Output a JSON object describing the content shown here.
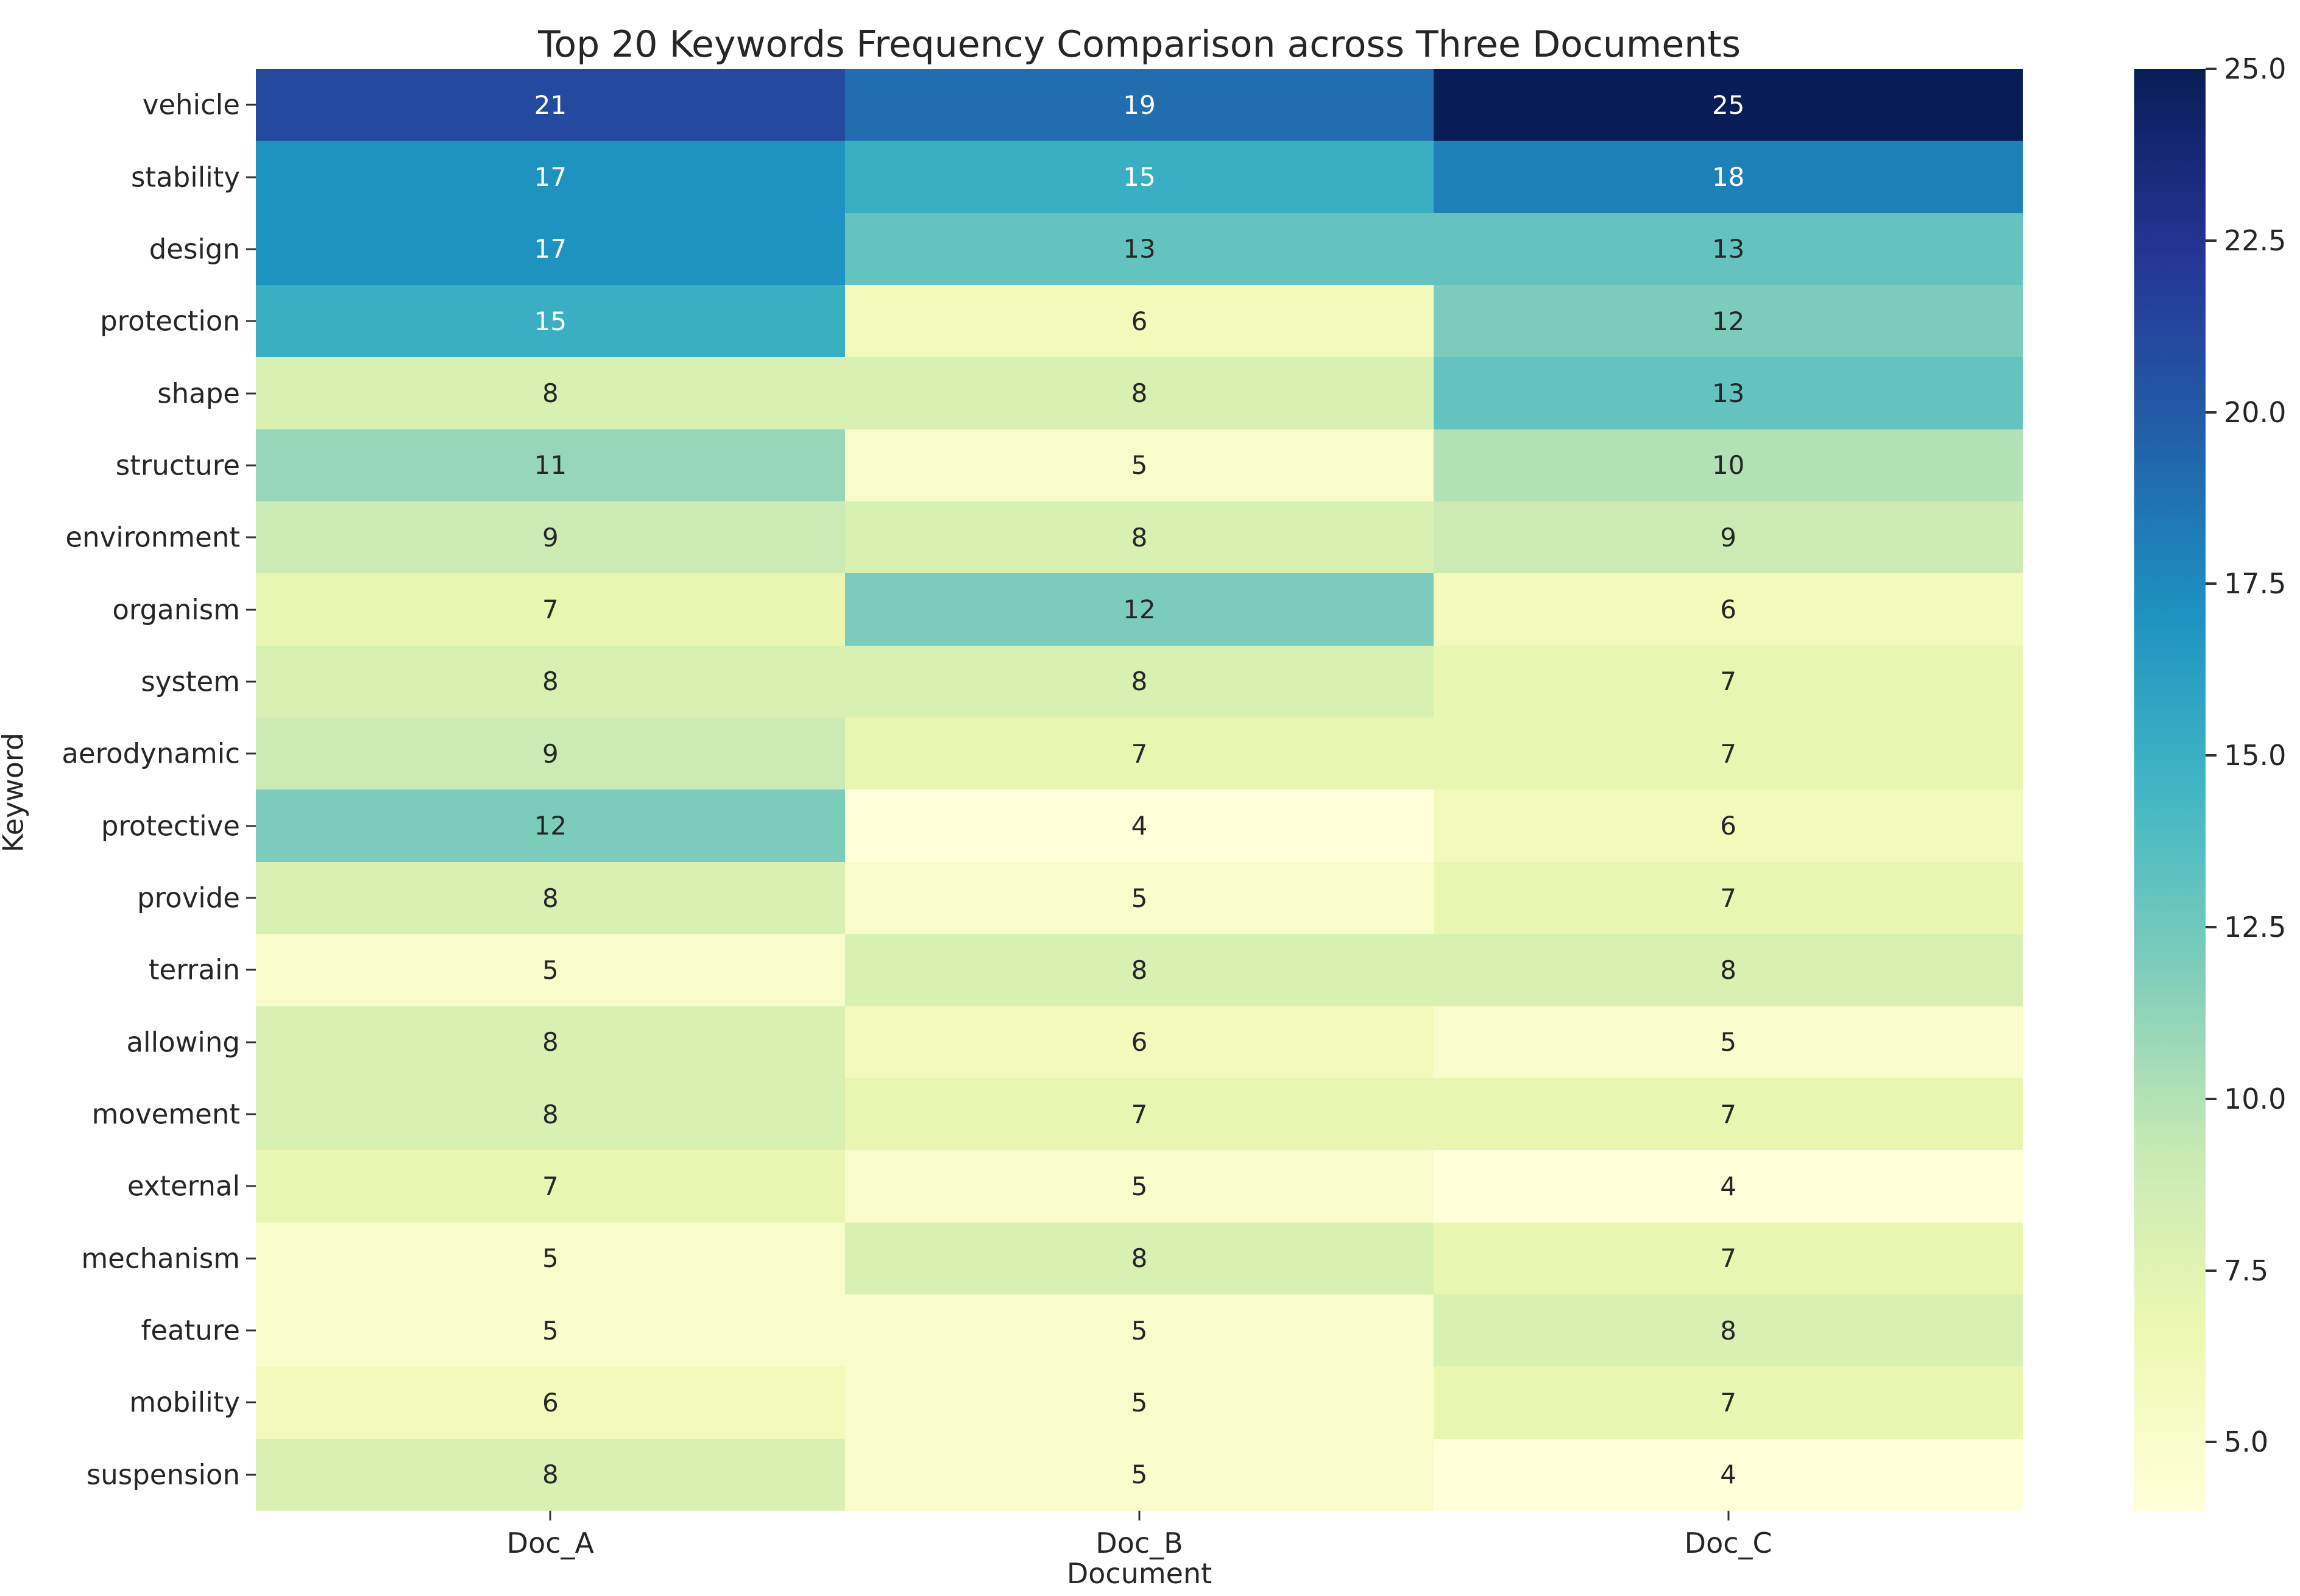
{
  "figure": {
    "title": "Top 20 Keywords Frequency Comparison across Three Documents",
    "xlabel": "Document",
    "ylabel": "Keyword"
  },
  "chart_data": {
    "type": "heatmap",
    "title": "Top 20 Keywords Frequency Comparison across Three Documents",
    "xlabel": "Document",
    "ylabel": "Keyword",
    "x_categories": [
      "Doc_A",
      "Doc_B",
      "Doc_C"
    ],
    "y_categories": [
      "vehicle",
      "stability",
      "design",
      "protection",
      "shape",
      "structure",
      "environment",
      "organism",
      "system",
      "aerodynamic",
      "protective",
      "provide",
      "terrain",
      "allowing",
      "movement",
      "external",
      "mechanism",
      "feature",
      "mobility",
      "suspension"
    ],
    "values": [
      [
        21,
        19,
        25
      ],
      [
        17,
        15,
        18
      ],
      [
        17,
        13,
        13
      ],
      [
        15,
        6,
        12
      ],
      [
        8,
        8,
        13
      ],
      [
        11,
        5,
        10
      ],
      [
        9,
        8,
        9
      ],
      [
        7,
        12,
        6
      ],
      [
        8,
        8,
        7
      ],
      [
        9,
        7,
        7
      ],
      [
        12,
        4,
        6
      ],
      [
        8,
        5,
        7
      ],
      [
        5,
        8,
        8
      ],
      [
        8,
        6,
        5
      ],
      [
        8,
        7,
        7
      ],
      [
        7,
        5,
        4
      ],
      [
        5,
        8,
        7
      ],
      [
        5,
        5,
        8
      ],
      [
        6,
        5,
        7
      ],
      [
        8,
        5,
        4
      ]
    ],
    "annotated": true,
    "grid": false,
    "colormap": {
      "name": "YlGnBu",
      "vmin": 4,
      "vmax": 25,
      "stops": [
        "#ffffd9",
        "#edf8b1",
        "#c7e9b4",
        "#7fcdbb",
        "#41b6c4",
        "#1d91c0",
        "#225ea8",
        "#253494",
        "#081d58"
      ]
    },
    "annotation_text_dark": "#262626",
    "annotation_text_light": "#ffffff",
    "colorbar": {
      "position": "right",
      "ticks": [
        "25.0",
        "22.5",
        "20.0",
        "17.5",
        "15.0",
        "12.5",
        "10.0",
        "7.5",
        "5.0"
      ]
    }
  }
}
